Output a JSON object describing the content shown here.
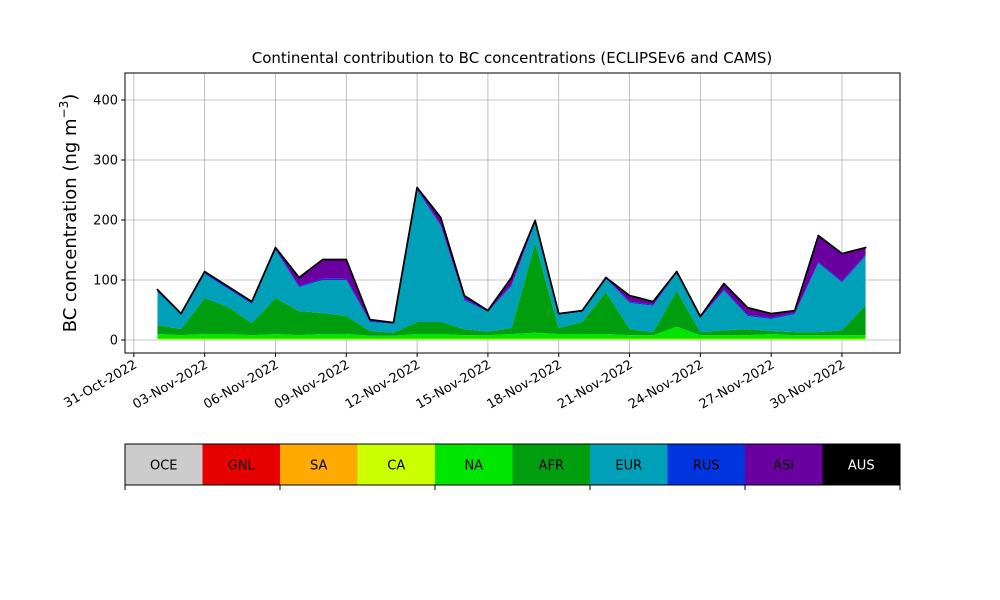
{
  "chart_data": {
    "type": "stacked_area",
    "title": "Continental contribution to BC concentrations (ECLIPSEv6 and CAMS)",
    "ylabel": {
      "text": "BC concentration (ng m",
      "sup": "−3",
      "end": ")"
    },
    "x": [
      "2022-11-01",
      "2022-11-02",
      "2022-11-03",
      "2022-11-04",
      "2022-11-05",
      "2022-11-06",
      "2022-11-07",
      "2022-11-08",
      "2022-11-09",
      "2022-11-10",
      "2022-11-11",
      "2022-11-12",
      "2022-11-13",
      "2022-11-14",
      "2022-11-15",
      "2022-11-16",
      "2022-11-17",
      "2022-11-18",
      "2022-11-19",
      "2022-11-20",
      "2022-11-21",
      "2022-11-22",
      "2022-11-23",
      "2022-11-24",
      "2022-11-25",
      "2022-11-26",
      "2022-11-27",
      "2022-11-28",
      "2022-11-29",
      "2022-11-30",
      "2022-12-01"
    ],
    "xlim": [
      "2022-10-30T15:00",
      "2022-12-02T11:00"
    ],
    "xticks": [
      {
        "value": "2022-10-31",
        "label": "31-Oct-2022"
      },
      {
        "value": "2022-11-03",
        "label": "03-Nov-2022"
      },
      {
        "value": "2022-11-06",
        "label": "06-Nov-2022"
      },
      {
        "value": "2022-11-09",
        "label": "09-Nov-2022"
      },
      {
        "value": "2022-11-12",
        "label": "12-Nov-2022"
      },
      {
        "value": "2022-11-15",
        "label": "15-Nov-2022"
      },
      {
        "value": "2022-11-18",
        "label": "18-Nov-2022"
      },
      {
        "value": "2022-11-21",
        "label": "21-Nov-2022"
      },
      {
        "value": "2022-11-24",
        "label": "24-Nov-2022"
      },
      {
        "value": "2022-11-27",
        "label": "27-Nov-2022"
      },
      {
        "value": "2022-11-30",
        "label": "30-Nov-2022"
      }
    ],
    "ylim": [
      -21.7,
      445
    ],
    "yticks": [
      0,
      100,
      200,
      300,
      400
    ],
    "grid": true,
    "series": [
      {
        "name": "OCE",
        "color": "#cccccc",
        "values": [
          0,
          0,
          0,
          0,
          0,
          0,
          0,
          0,
          0,
          0,
          0,
          0,
          0,
          0,
          0,
          0,
          0,
          0,
          0,
          0,
          0,
          0,
          0,
          0,
          0,
          0,
          0,
          0,
          0,
          0,
          0
        ]
      },
      {
        "name": "GNL",
        "color": "#e60000",
        "values": [
          0,
          0,
          0,
          0,
          0,
          0,
          0,
          0,
          0,
          0,
          0,
          0,
          0,
          0,
          0,
          0,
          0,
          0,
          0,
          0,
          0,
          0,
          0,
          0,
          0,
          0,
          0,
          0,
          0,
          0,
          0
        ]
      },
      {
        "name": "SA",
        "color": "#ffaa00",
        "values": [
          0,
          0,
          0,
          0,
          0,
          0,
          0,
          0,
          0,
          0,
          0,
          0,
          0,
          0,
          0,
          0,
          0,
          0,
          0,
          0,
          0,
          0,
          0,
          0,
          0,
          0,
          0,
          0,
          0,
          0,
          0
        ]
      },
      {
        "name": "CA",
        "color": "#ccff00",
        "values": [
          2,
          2,
          2,
          2,
          2,
          2,
          2,
          2,
          2,
          2,
          2,
          2,
          2,
          2,
          2,
          2,
          2,
          2,
          2,
          2,
          2,
          2,
          2,
          2,
          2,
          2,
          2,
          2,
          2,
          2,
          2
        ]
      },
      {
        "name": "NA",
        "color": "#00e600",
        "values": [
          8,
          6,
          8,
          8,
          6,
          8,
          6,
          8,
          8,
          5,
          5,
          8,
          8,
          6,
          6,
          8,
          10,
          8,
          8,
          8,
          6,
          6,
          20,
          6,
          6,
          6,
          8,
          6,
          6,
          6,
          6
        ]
      },
      {
        "name": "AFR",
        "color": "#009e0e",
        "values": [
          15,
          10,
          60,
          45,
          20,
          60,
          40,
          35,
          30,
          8,
          5,
          20,
          20,
          10,
          6,
          10,
          150,
          10,
          20,
          70,
          10,
          5,
          60,
          5,
          8,
          10,
          5,
          5,
          5,
          8,
          50
        ]
      },
      {
        "name": "EUR",
        "color": "#00a0b8",
        "values": [
          55,
          24,
          40,
          30,
          32,
          80,
          40,
          55,
          60,
          15,
          15,
          220,
          160,
          48,
          33,
          70,
          33,
          22,
          17,
          22,
          44,
          44,
          30,
          24,
          66,
          22,
          20,
          30,
          115,
          80,
          82
        ]
      },
      {
        "name": "RUS",
        "color": "#0035e0",
        "values": [
          2,
          2,
          2,
          2,
          2,
          2,
          2,
          2,
          2,
          2,
          2,
          2,
          2,
          2,
          2,
          2,
          2,
          2,
          2,
          2,
          2,
          2,
          2,
          2,
          2,
          2,
          2,
          2,
          2,
          2,
          2
        ]
      },
      {
        "name": "ASI",
        "color": "#6a00a0",
        "values": [
          2,
          0,
          2,
          2,
          2,
          2,
          14,
          32,
          32,
          2,
          0,
          2,
          12,
          6,
          0,
          12,
          2,
          0,
          0,
          0,
          10,
          5,
          0,
          0,
          10,
          12,
          7,
          4,
          44,
          46,
          12
        ]
      },
      {
        "name": "AUS",
        "color": "#000000",
        "values": [
          0,
          0,
          0,
          0,
          0,
          0,
          0,
          0,
          0,
          0,
          0,
          0,
          0,
          0,
          0,
          0,
          0,
          0,
          0,
          0,
          0,
          0,
          0,
          0,
          0,
          0,
          0,
          0,
          0,
          0,
          0
        ]
      }
    ]
  }
}
